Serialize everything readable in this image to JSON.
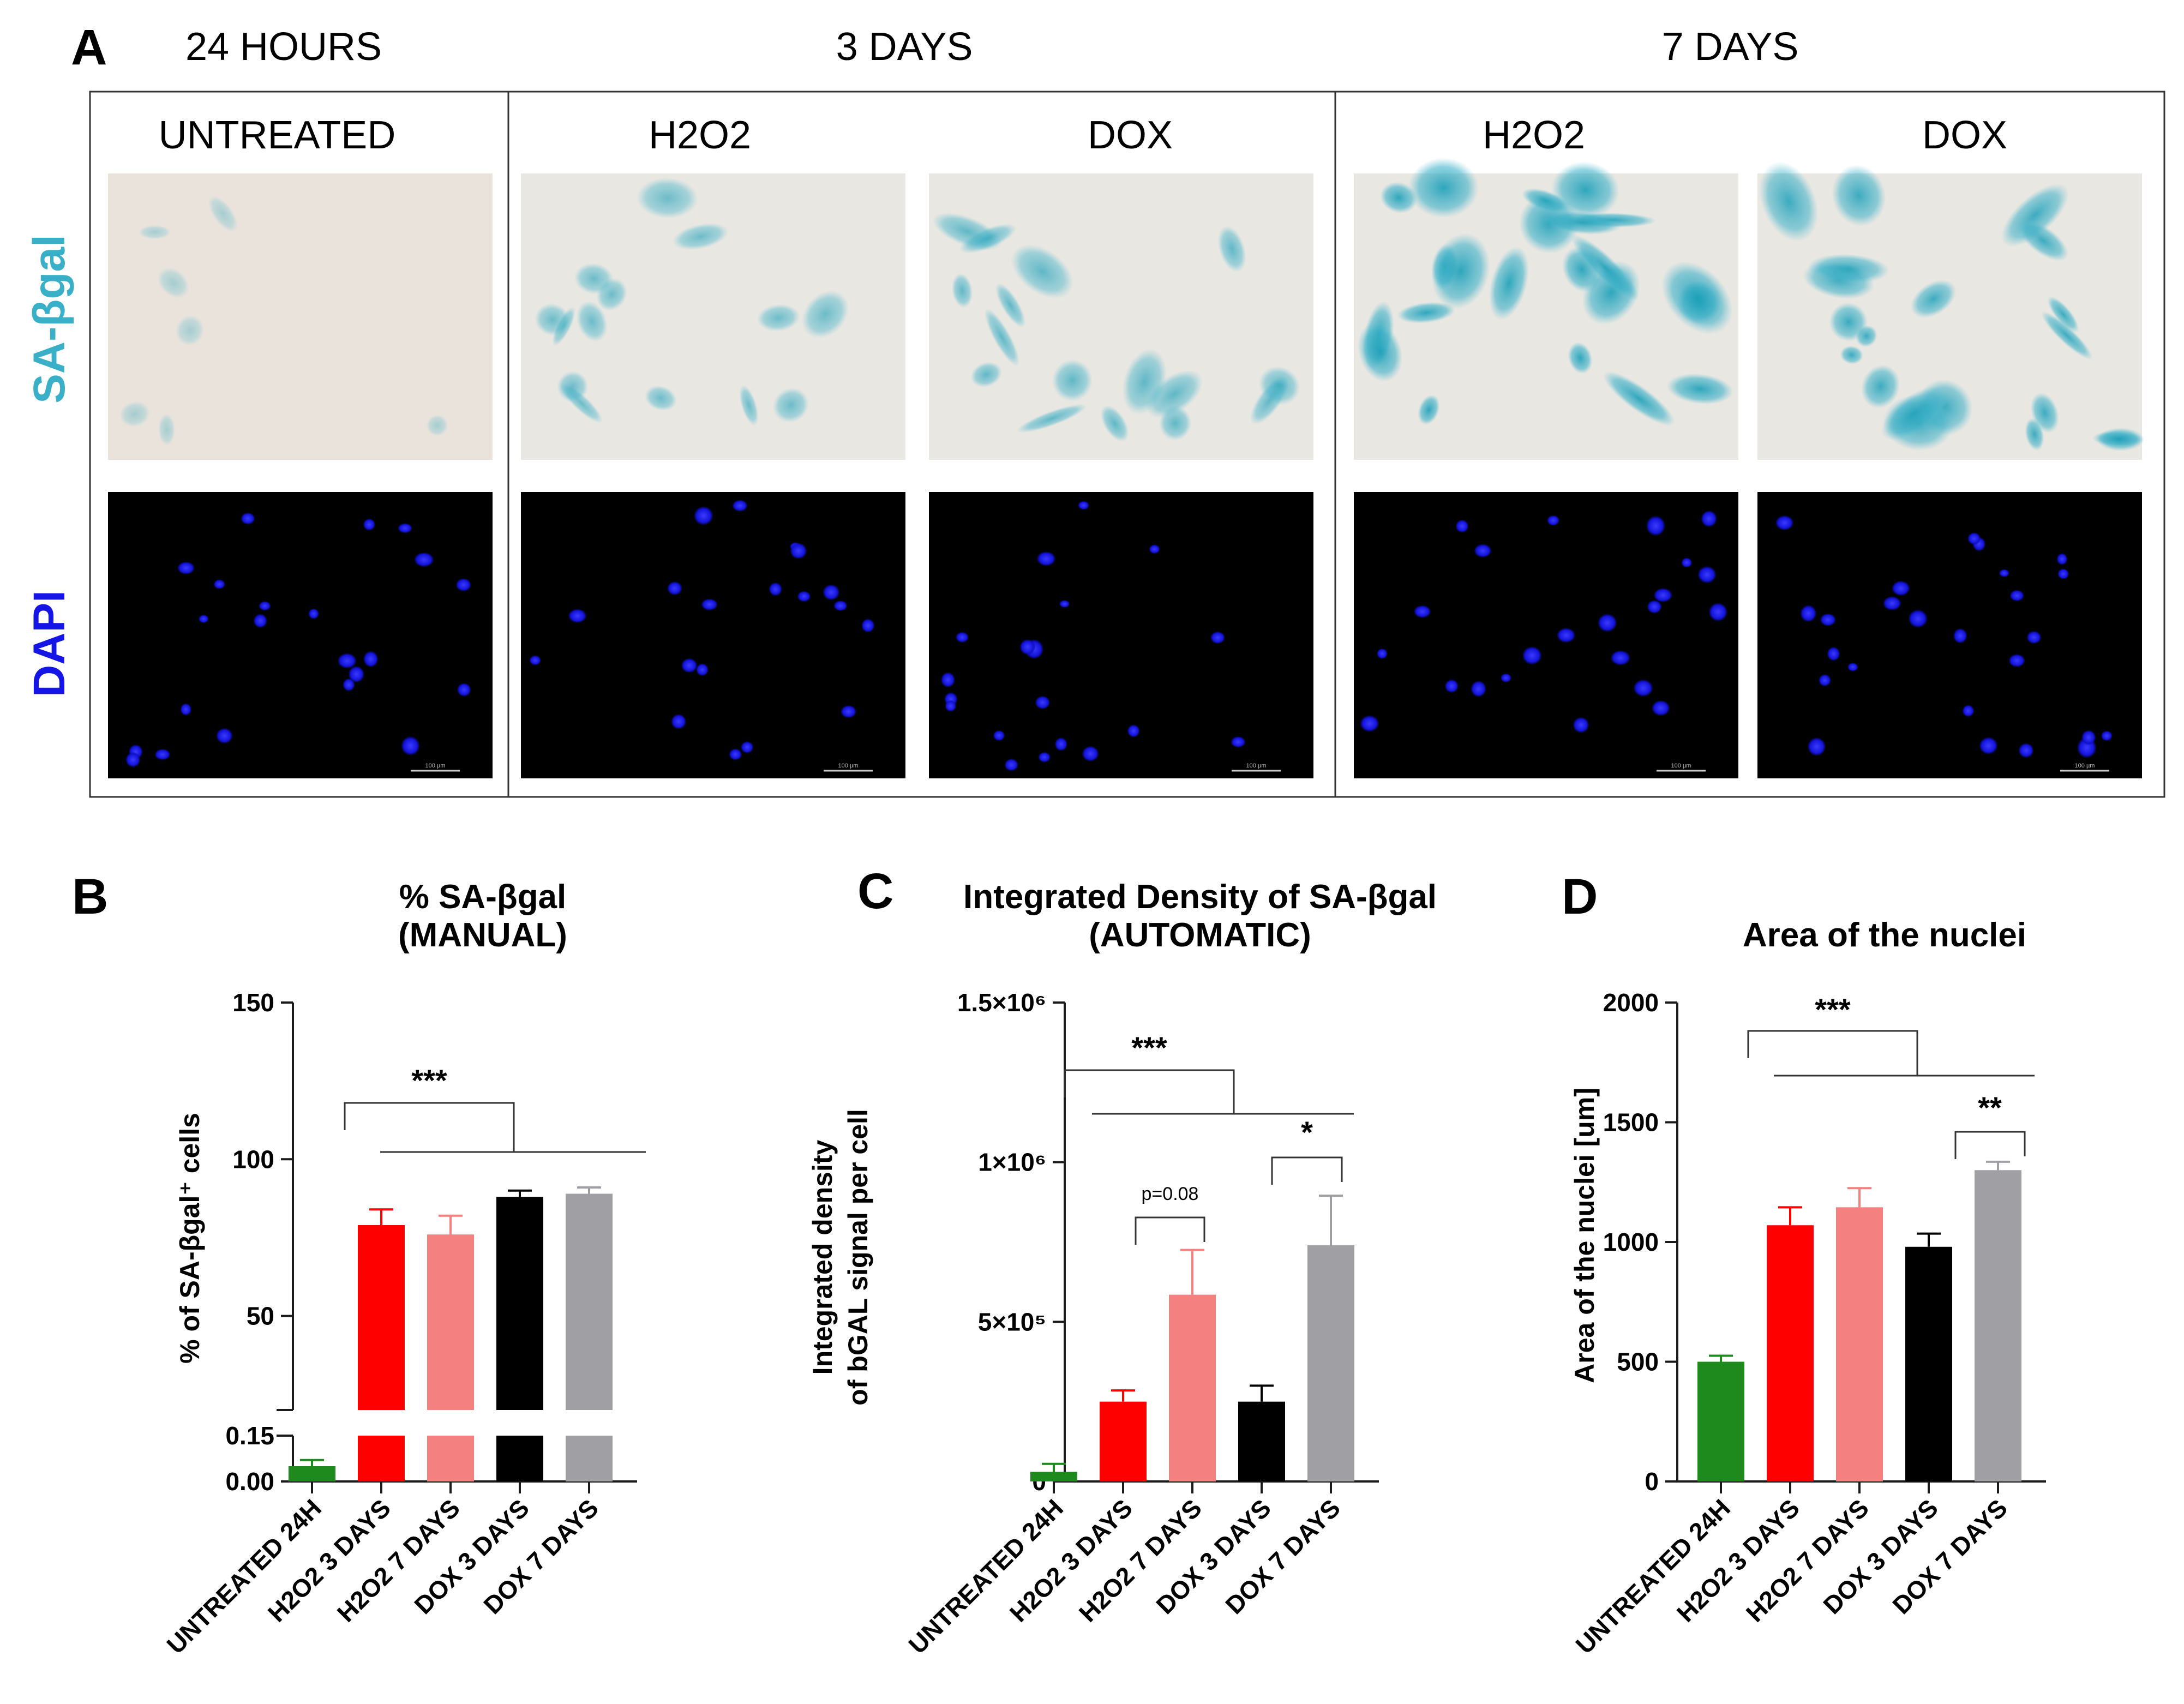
{
  "panel_a": {
    "letter": "A",
    "time_headers": [
      "24 HOURS",
      "3 DAYS",
      "7 DAYS"
    ],
    "conditions": [
      "UNTREATED",
      "H2O2",
      "DOX",
      "H2O2",
      "DOX"
    ],
    "stain_labels": {
      "sa_bgal": "SA-βgal",
      "dapi": "DAPI"
    },
    "scale_bar_label": "100 µm",
    "colors": {
      "sa_bgal": "#3ab0c8",
      "dapi": "#1515e6"
    }
  },
  "chart_data": [
    {
      "type": "bar",
      "panel": "B",
      "title": [
        "% SA-βgal",
        "(MANUAL)"
      ],
      "ylabel": "% of SA-βgal⁺ cells",
      "axis_break": {
        "lower_range": [
          0,
          0.15
        ],
        "upper_range": [
          20,
          150
        ]
      },
      "yticks_upper": [
        50,
        100,
        150
      ],
      "yticks_upper_labels": [
        "50",
        "100",
        "150"
      ],
      "yticks_lower": [
        0,
        0.15
      ],
      "yticks_lower_labels": [
        "0.00",
        "0.15"
      ],
      "categories": [
        "UNTREATED 24H",
        "H2O2 3 DAYS",
        "H2O2 7 DAYS",
        "DOX 3 DAYS",
        "DOX 7 DAYS"
      ],
      "values": [
        0.05,
        79,
        76,
        88,
        89
      ],
      "errors": [
        0.02,
        5,
        6,
        2,
        2
      ],
      "colors": [
        "#1e8a1e",
        "#ff0000",
        "#f58080",
        "#000000",
        "#a0a0a4"
      ],
      "significance": [
        {
          "label": "***"
        }
      ]
    },
    {
      "type": "bar",
      "panel": "C",
      "title": [
        "Integrated Density of SA-βgal",
        "(AUTOMATIC)"
      ],
      "ylabel": [
        "Integrated density",
        "of bGAL signal per cell"
      ],
      "ylim": [
        0,
        1500000
      ],
      "yticks": [
        0,
        500000,
        1000000,
        1500000
      ],
      "ytick_labels": [
        "0",
        "5×10⁵",
        "1×10⁶",
        "1.5×10⁶"
      ],
      "categories": [
        "UNTREATED 24H",
        "H2O2 3 DAYS",
        "H2O2 7 DAYS",
        "DOX 3 DAYS",
        "DOX 7 DAYS"
      ],
      "values": [
        30000,
        250000,
        585000,
        250000,
        740000
      ],
      "errors": [
        25000,
        35000,
        140000,
        50000,
        155000
      ],
      "colors": [
        "#1e8a1e",
        "#ff0000",
        "#f58080",
        "#000000",
        "#a0a0a4"
      ],
      "significance": [
        {
          "label": "***"
        },
        {
          "label": "p=0.08"
        },
        {
          "label": "*"
        }
      ]
    },
    {
      "type": "bar",
      "panel": "D",
      "title": [
        "Area of the nuclei"
      ],
      "ylabel": "Area of the nuclei [um]",
      "ylim": [
        0,
        2000
      ],
      "yticks": [
        0,
        500,
        1000,
        1500,
        2000
      ],
      "ytick_labels": [
        "0",
        "500",
        "1000",
        "1500",
        "2000"
      ],
      "categories": [
        "UNTREATED 24H",
        "H2O2 3 DAYS",
        "H2O2 7 DAYS",
        "DOX 3 DAYS",
        "DOX 7 DAYS"
      ],
      "values": [
        500,
        1070,
        1145,
        980,
        1300
      ],
      "errors": [
        25,
        75,
        80,
        55,
        35
      ],
      "colors": [
        "#1e8a1e",
        "#ff0000",
        "#f58080",
        "#000000",
        "#a0a0a4"
      ],
      "significance": [
        {
          "label": "***"
        },
        {
          "label": "**"
        }
      ]
    }
  ]
}
